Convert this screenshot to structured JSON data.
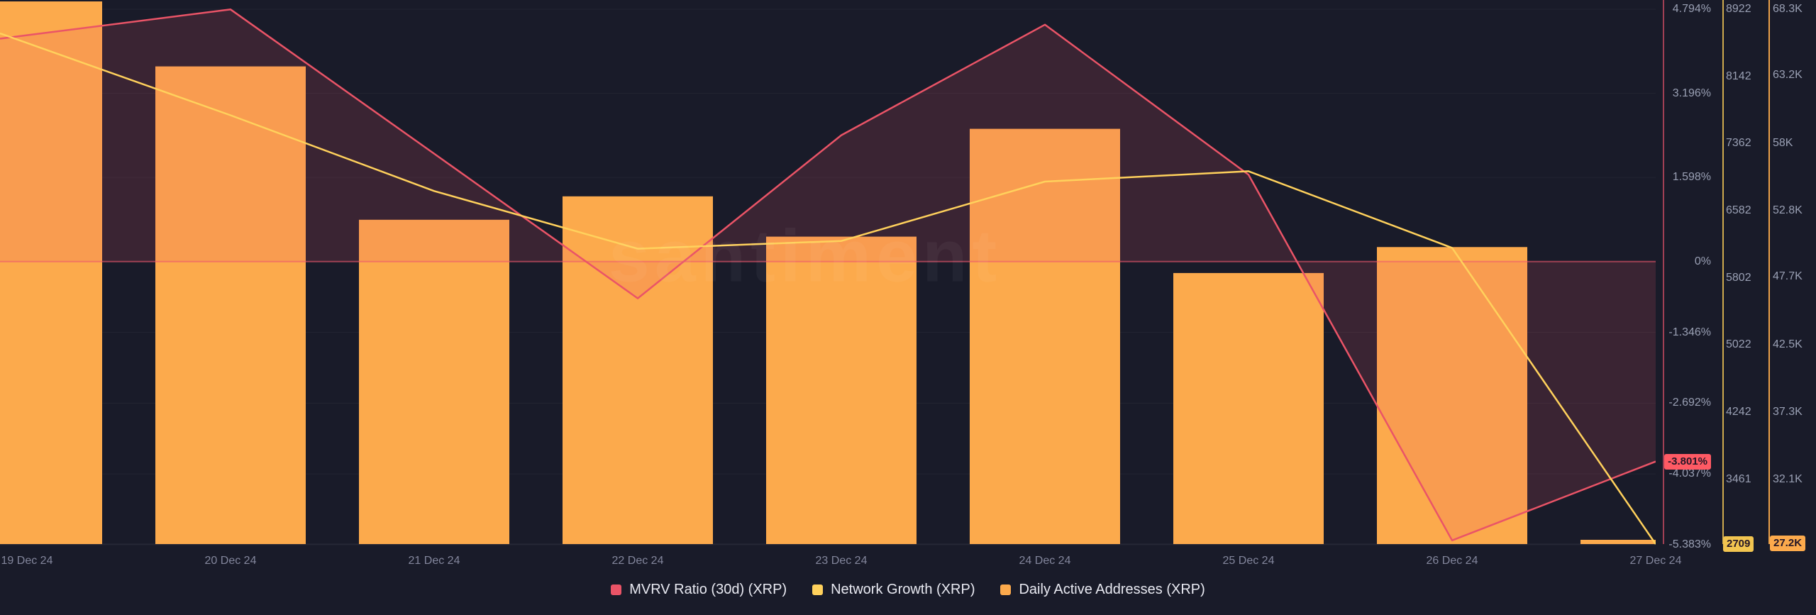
{
  "watermark": "santiment",
  "colors": {
    "background": "#191b29",
    "mvrv": "#ea5467",
    "network_growth": "#ffd15c",
    "daily_active": "#fcaa4c",
    "area_fill": "rgba(234,84,108,0.16)",
    "zero_line": "rgba(236,88,110,0.6)",
    "badge_text": "#241627"
  },
  "chart_data": {
    "type": "mixed",
    "categories": [
      "19 Dec 24",
      "20 Dec 24",
      "21 Dec 24",
      "22 Dec 24",
      "23 Dec 24",
      "24 Dec 24",
      "25 Dec 24",
      "26 Dec 24",
      "27 Dec 24"
    ],
    "series": [
      {
        "name": "MVRV Ratio (30d) (XRP)",
        "type": "line",
        "axis": "percent",
        "color": "#ea5467",
        "fill": true,
        "values": [
          4.3,
          4.79,
          2.05,
          -0.7,
          2.4,
          4.5,
          1.65,
          -5.3,
          -3.801
        ]
      },
      {
        "name": "Network Growth (XRP)",
        "type": "line",
        "axis": "count",
        "color": "#ffd15c",
        "values": [
          8530,
          7690,
          6810,
          6140,
          6230,
          6920,
          7040,
          6150,
          2709
        ]
      },
      {
        "name": "Daily Active Addresses (XRP)",
        "type": "bar",
        "axis": "kcount",
        "color": "#fcaa4c",
        "values": [
          68900,
          63900,
          52100,
          53900,
          50800,
          59100,
          48000,
          50000,
          27200
        ]
      }
    ],
    "axes": {
      "percent": {
        "position": "right",
        "labels": [
          "4.794%",
          "3.196%",
          "1.598%",
          "0%",
          "-1.346%",
          "-2.692%",
          "-4.037%",
          "-5.383%"
        ],
        "label_values": [
          4.794,
          3.196,
          1.598,
          0,
          -1.346,
          -2.692,
          -4.037,
          -5.383
        ],
        "badge": "-3.801%",
        "badge_value": -3.801
      },
      "count": {
        "position": "right",
        "labels": [
          "8922",
          "8142",
          "7362",
          "6582",
          "5802",
          "5022",
          "4242",
          "3461"
        ],
        "label_values": [
          8922,
          8142,
          7362,
          6582,
          5802,
          5022,
          4242,
          3461
        ],
        "badge": "2709",
        "badge_value": 2709
      },
      "kcount": {
        "position": "right",
        "labels": [
          "68.3K",
          "63.2K",
          "58K",
          "52.8K",
          "47.7K",
          "42.5K",
          "37.3K",
          "32.1K"
        ],
        "label_values": [
          68300,
          63200,
          58000,
          52800,
          47700,
          42500,
          37300,
          32100
        ],
        "badge": "27.2K",
        "badge_value": 27200
      }
    },
    "legend": [
      "MVRV Ratio (30d) (XRP)",
      "Network Growth (XRP)",
      "Daily Active Addresses (XRP)"
    ],
    "grid": true,
    "legend_position": "bottom-center"
  }
}
